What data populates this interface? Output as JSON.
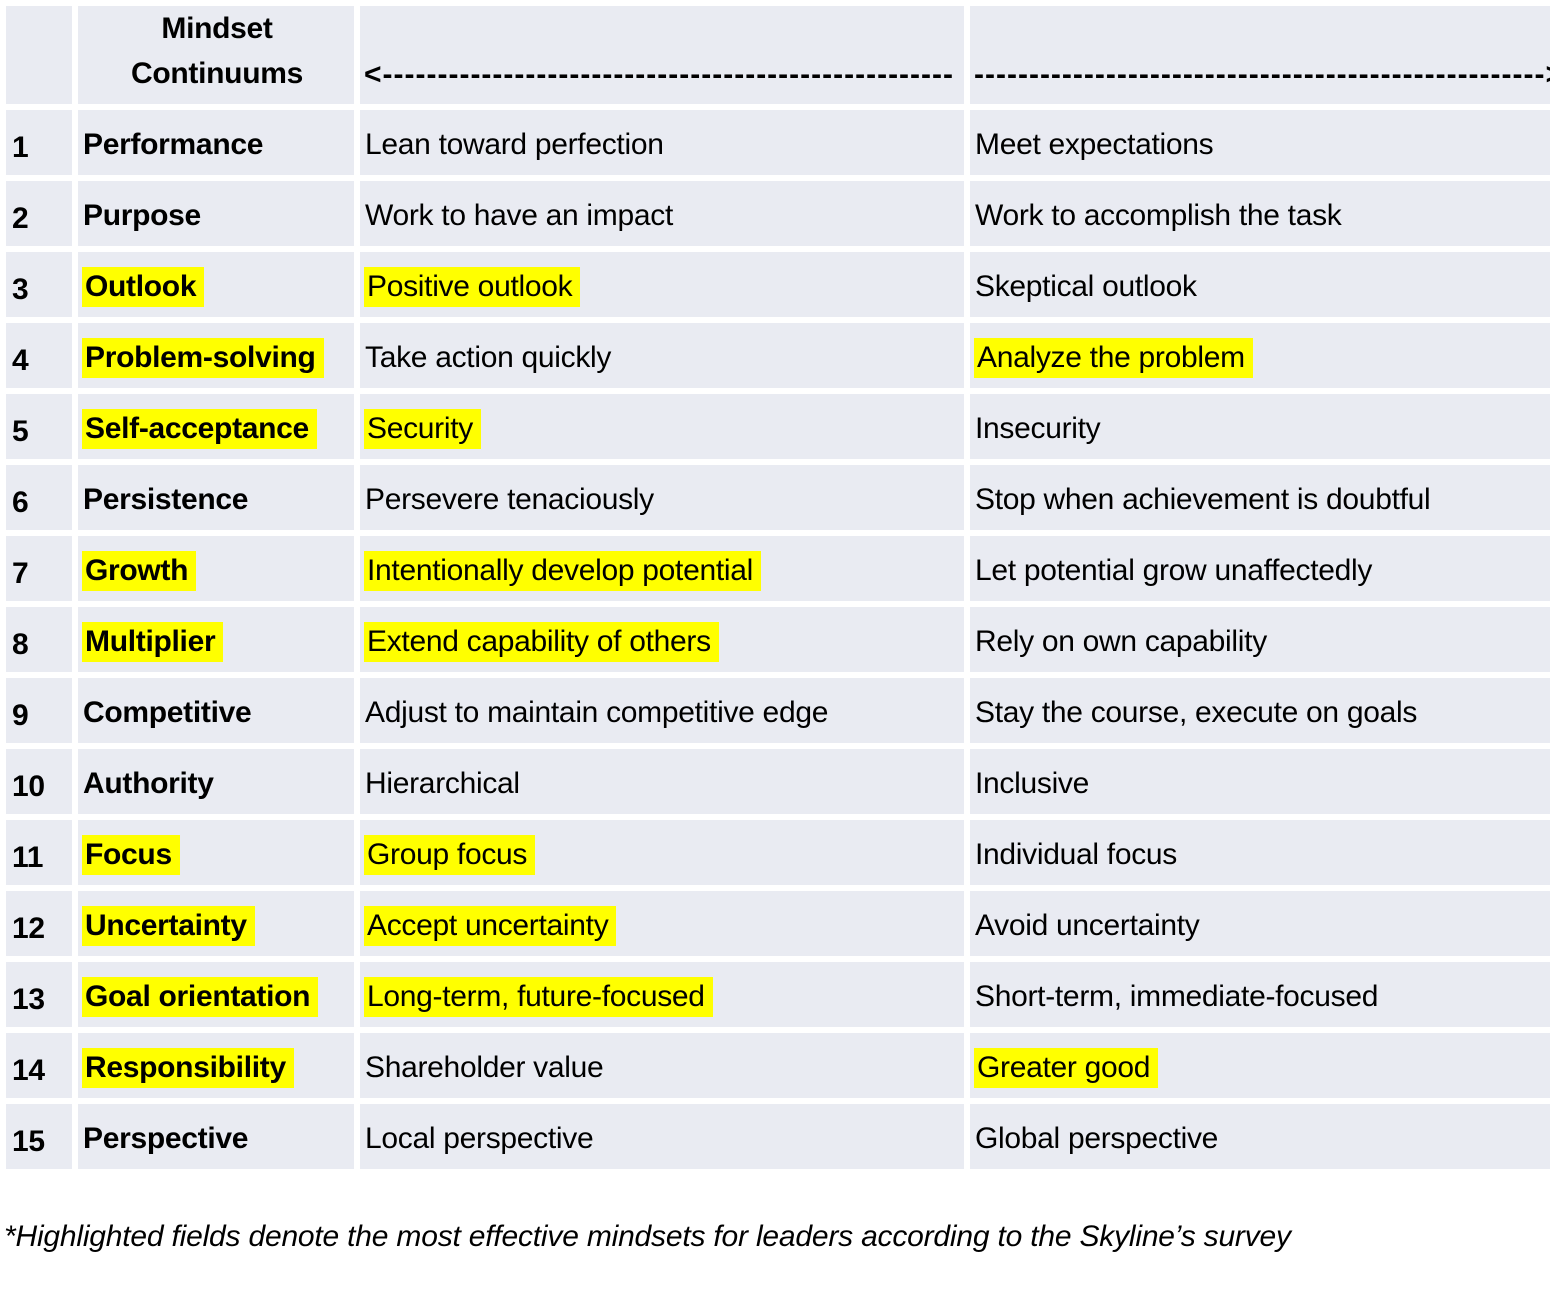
{
  "colors": {
    "cell_bg": "#e9ebf2",
    "grid": "#ffffff",
    "highlight": "#ffff00",
    "text": "#000000"
  },
  "header": {
    "title_line1": "Mindset",
    "title_line2": "Continuums",
    "arrow_left": "<----------------------------------------------------",
    "arrow_right": "---------------------------------------------------->"
  },
  "table": {
    "rows": [
      {
        "num": "1",
        "name": "Performance",
        "name_hl": false,
        "left": "Lean toward perfection",
        "left_hl": false,
        "right": "Meet expectations",
        "right_hl": false
      },
      {
        "num": "2",
        "name": "Purpose",
        "name_hl": false,
        "left": "Work to have an impact",
        "left_hl": false,
        "right": "Work to accomplish the task",
        "right_hl": false
      },
      {
        "num": "3",
        "name": "Outlook",
        "name_hl": true,
        "left": "Positive outlook",
        "left_hl": true,
        "right": "Skeptical outlook",
        "right_hl": false
      },
      {
        "num": "4",
        "name": "Problem-solving",
        "name_hl": true,
        "left": "Take action quickly",
        "left_hl": false,
        "right": "Analyze the problem",
        "right_hl": true
      },
      {
        "num": "5",
        "name": "Self-acceptance",
        "name_hl": true,
        "left": "Security",
        "left_hl": true,
        "right": "Insecurity",
        "right_hl": false
      },
      {
        "num": "6",
        "name": "Persistence",
        "name_hl": false,
        "left": "Persevere tenaciously",
        "left_hl": false,
        "right": "Stop when achievement is doubtful",
        "right_hl": false
      },
      {
        "num": "7",
        "name": "Growth",
        "name_hl": true,
        "left": "Intentionally develop potential",
        "left_hl": true,
        "right": "Let potential grow unaffectedly",
        "right_hl": false
      },
      {
        "num": "8",
        "name": "Multiplier",
        "name_hl": true,
        "left": "Extend capability of others",
        "left_hl": true,
        "right": "Rely on own capability",
        "right_hl": false
      },
      {
        "num": "9",
        "name": "Competitive",
        "name_hl": false,
        "left": "Adjust to maintain competitive edge",
        "left_hl": false,
        "right": "Stay the course, execute on goals",
        "right_hl": false
      },
      {
        "num": "10",
        "name": "Authority",
        "name_hl": false,
        "left": "Hierarchical",
        "left_hl": false,
        "right": "Inclusive",
        "right_hl": false
      },
      {
        "num": "11",
        "name": "Focus",
        "name_hl": true,
        "left": "Group focus",
        "left_hl": true,
        "right": "Individual focus",
        "right_hl": false
      },
      {
        "num": "12",
        "name": "Uncertainty",
        "name_hl": true,
        "left": "Accept uncertainty",
        "left_hl": true,
        "right": "Avoid uncertainty",
        "right_hl": false
      },
      {
        "num": "13",
        "name": "Goal orientation",
        "name_hl": true,
        "left": "Long-term, future-focused",
        "left_hl": true,
        "right": "Short-term, immediate-focused",
        "right_hl": false
      },
      {
        "num": "14",
        "name": "Responsibility",
        "name_hl": true,
        "left": "Shareholder value",
        "left_hl": false,
        "right": "Greater good",
        "right_hl": true
      },
      {
        "num": "15",
        "name": "Perspective",
        "name_hl": false,
        "left": "Local perspective",
        "left_hl": false,
        "right": "Global perspective",
        "right_hl": false
      }
    ]
  },
  "footnote": "*Highlighted fields denote the most effective mindsets for leaders according to the Skyline’s survey"
}
